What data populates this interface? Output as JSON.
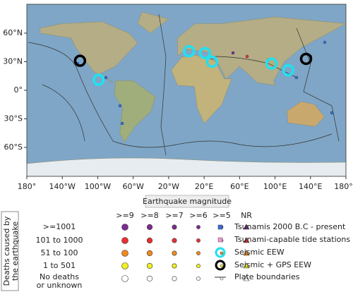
{
  "map": {
    "xticks": [
      {
        "value": -180,
        "label": "180°"
      },
      {
        "value": -140,
        "label": "140°W"
      },
      {
        "value": -100,
        "label": "100°W"
      },
      {
        "value": -60,
        "label": "60°W"
      },
      {
        "value": -20,
        "label": "20°W"
      },
      {
        "value": 20,
        "label": "20°E"
      },
      {
        "value": 60,
        "label": "60°E"
      },
      {
        "value": 100,
        "label": "100°E"
      },
      {
        "value": 140,
        "label": "140°E"
      },
      {
        "value": 180,
        "label": "180°E"
      }
    ],
    "yticks": [
      {
        "value": 60,
        "label": "60°N"
      },
      {
        "value": 30,
        "label": "30°N"
      },
      {
        "value": 0,
        "label": "0°"
      },
      {
        "value": -30,
        "label": "30°S"
      },
      {
        "value": -60,
        "label": "60°S"
      }
    ],
    "seismic_eew": {
      "lon": [
        3,
        21,
        29,
        96,
        115,
        -99
      ],
      "lat": [
        41,
        39,
        30,
        28,
        21,
        11
      ]
    },
    "seismic_gps_eew": {
      "lon": [
        -120,
        135
      ],
      "lat": [
        31,
        33
      ]
    }
  },
  "legend": {
    "magnitude_title": "Earthquake magnitude",
    "magnitude_columns": [
      ">=9",
      ">=8",
      ">=7",
      ">=6",
      ">=5",
      "NR"
    ],
    "deaths_title": [
      "Deaths caused by",
      "the earthquake"
    ],
    "death_rows": [
      [
        ">=1001"
      ],
      [
        "101 to 1000"
      ],
      [
        "51 to 100"
      ],
      [
        "1 to 501"
      ],
      [
        "No deaths",
        "or unknown"
      ]
    ],
    "items": [
      "Tsunamis 2000 B.C - present",
      "Tsunami-capable tide stations",
      "Seismic EEW",
      "Seismic + GPS EEW",
      "Plate boundaries"
    ]
  }
}
